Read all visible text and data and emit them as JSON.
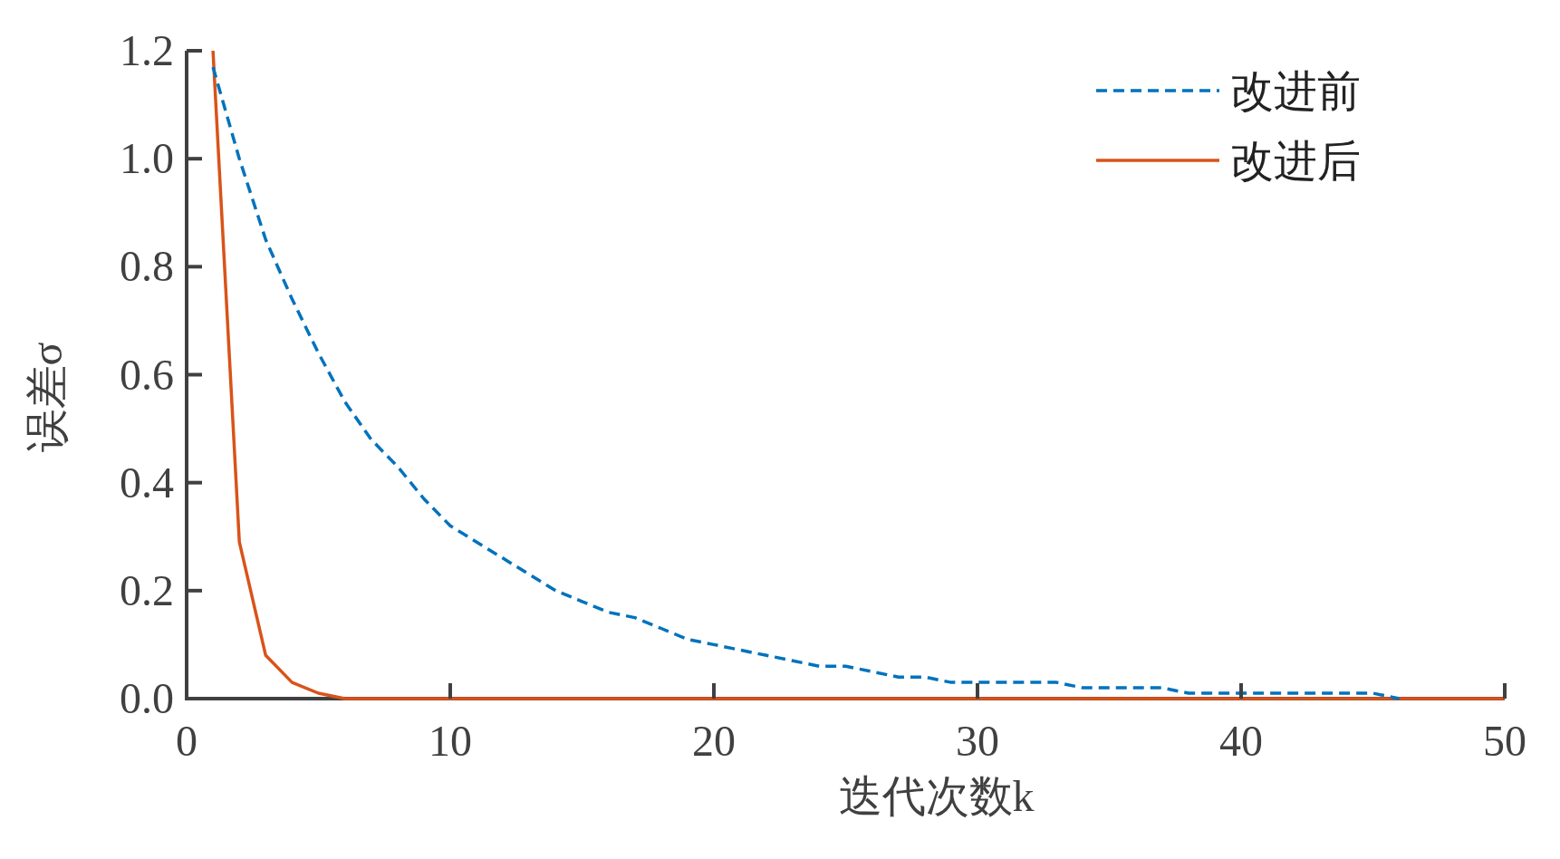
{
  "chart_data": {
    "type": "line",
    "xlabel": "迭代次数k",
    "ylabel": "误差σ",
    "legend": "top right",
    "x": [
      1,
      2,
      3,
      4,
      5,
      6,
      7,
      8,
      9,
      10,
      11,
      12,
      13,
      14,
      15,
      16,
      17,
      18,
      19,
      20,
      21,
      22,
      23,
      24,
      25,
      26,
      27,
      28,
      29,
      30,
      31,
      32,
      33,
      34,
      35,
      36,
      37,
      38,
      39,
      40,
      41,
      42,
      43,
      44,
      45,
      46,
      47,
      48,
      49,
      50
    ],
    "series": [
      {
        "name": "改进前",
        "color": "#0072bd",
        "line_style": "dashed",
        "values": [
          1.17,
          1.0,
          0.85,
          0.74,
          0.64,
          0.55,
          0.48,
          0.43,
          0.37,
          0.32,
          0.29,
          0.26,
          0.23,
          0.2,
          0.18,
          0.16,
          0.15,
          0.13,
          0.11,
          0.1,
          0.09,
          0.08,
          0.07,
          0.06,
          0.06,
          0.05,
          0.04,
          0.04,
          0.03,
          0.03,
          0.03,
          0.03,
          0.03,
          0.02,
          0.02,
          0.02,
          0.02,
          0.01,
          0.01,
          0.01,
          0.01,
          0.01,
          0.01,
          0.01,
          0.01,
          0,
          null,
          null,
          null,
          null
        ]
      },
      {
        "name": "改进后",
        "color": "#d95319",
        "line_style": "solid",
        "values": [
          1.2,
          0.29,
          0.08,
          0.03,
          0.01,
          0,
          0,
          0,
          0,
          0,
          0,
          0,
          0,
          0,
          0,
          0,
          0,
          0,
          0,
          0,
          0,
          0,
          0,
          0,
          0,
          0,
          0,
          0,
          0,
          0,
          0,
          0,
          0,
          0,
          0,
          0,
          0,
          0,
          0,
          0,
          0,
          0,
          0,
          0,
          0,
          0,
          0,
          0,
          0,
          0
        ]
      }
    ],
    "xlim": [
      0,
      50
    ],
    "ylim": [
      0,
      1.2
    ],
    "xticks": [
      0,
      10,
      20,
      30,
      40,
      50
    ],
    "yticks": [
      {
        "value": 0,
        "label": "0.0"
      },
      {
        "value": 0.2,
        "label": "0.2"
      },
      {
        "value": 0.4,
        "label": "0.4"
      },
      {
        "value": 0.6,
        "label": "0.6"
      },
      {
        "value": 0.8,
        "label": "0.8"
      },
      {
        "value": 1.0,
        "label": "1.0"
      },
      {
        "value": 1.2,
        "label": "1.2"
      }
    ]
  }
}
